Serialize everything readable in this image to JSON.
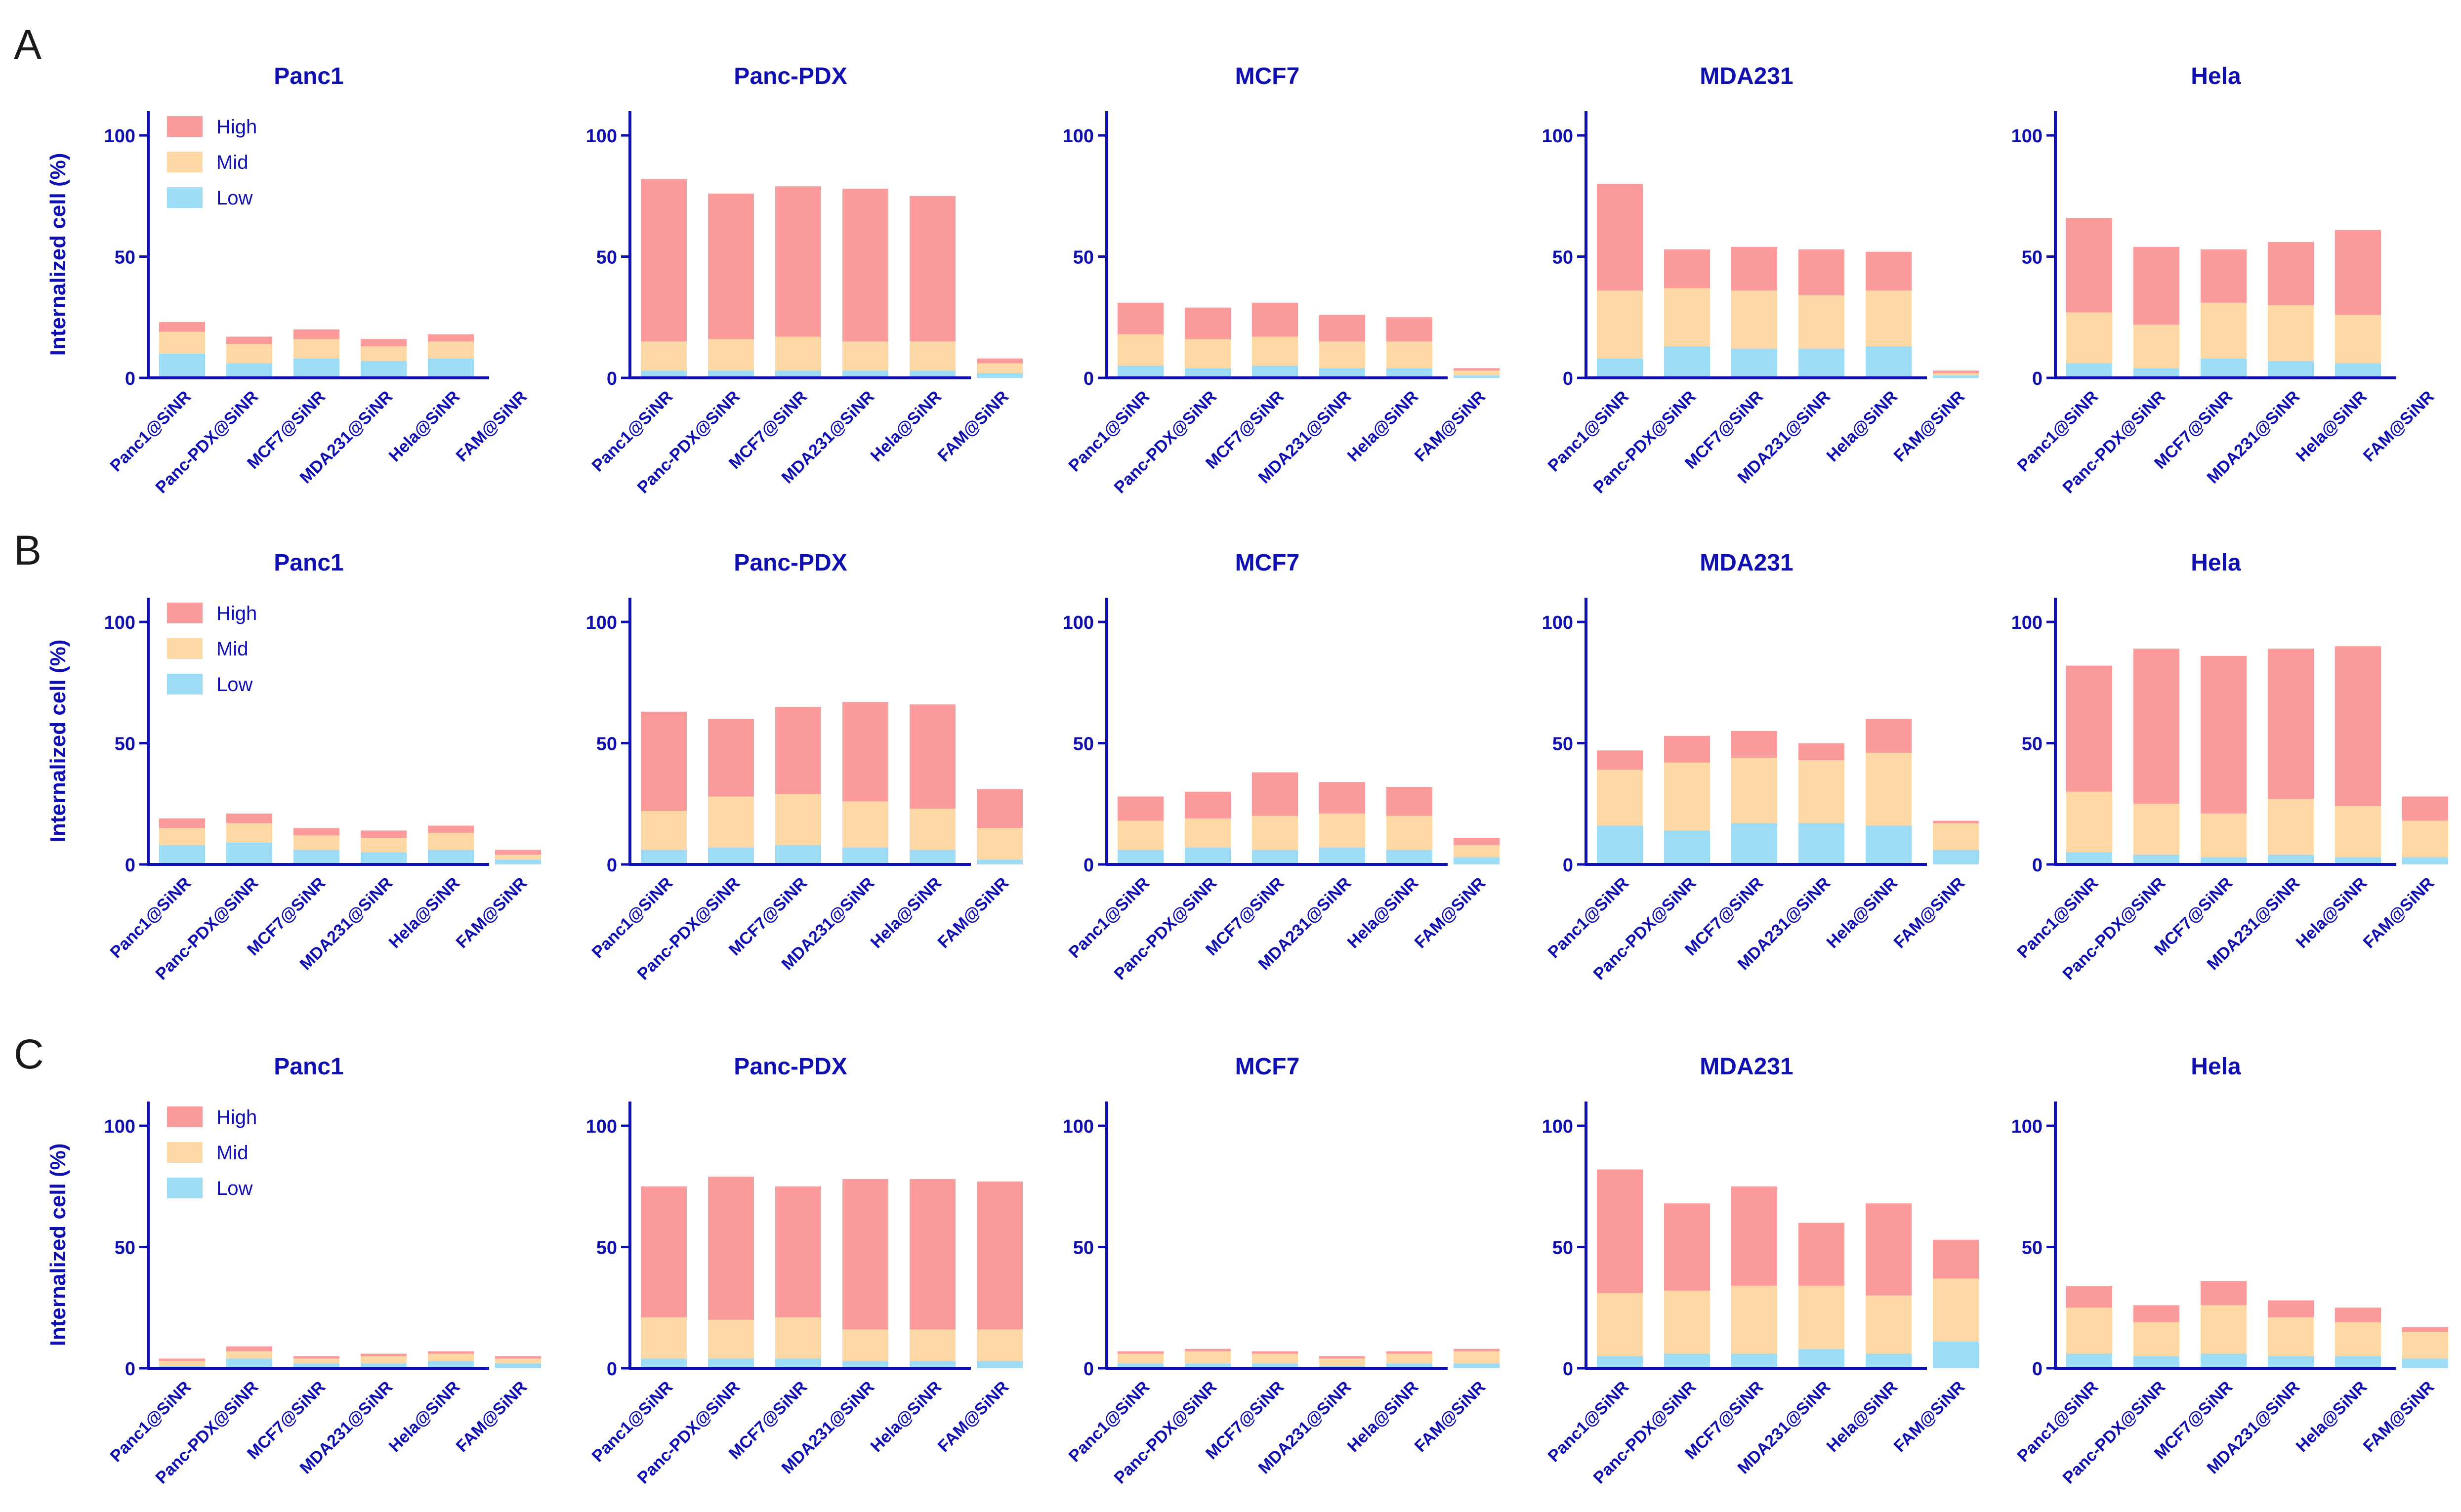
{
  "figure": {
    "row_labels": [
      "A",
      "B",
      "C"
    ],
    "ylabel": "Internalized cell (%)",
    "legend": {
      "high": "High",
      "mid": "Mid",
      "low": "Low"
    },
    "colors": {
      "high": "#fc9b9b",
      "mid": "#fdd7a4",
      "low": "#9edcf5",
      "axis": "#1010b0",
      "text": "#1010b0"
    }
  },
  "chart_data": [
    {
      "row": "A",
      "type": "bar",
      "stacked": true,
      "title": "Panc1",
      "ylabel": "Internalized cell (%)",
      "ylim": [
        0,
        110
      ],
      "yticks": [
        0,
        50,
        100
      ],
      "categories": [
        "Panc1@SiNR",
        "Panc-PDX@SiNR",
        "MCF7@SiNR",
        "MDA231@SiNR",
        "Hela@SiNR",
        "FAM@SiNR"
      ],
      "series": [
        {
          "name": "Low",
          "values": [
            10,
            6,
            8,
            7,
            8,
            0
          ]
        },
        {
          "name": "Mid",
          "values": [
            9,
            8,
            8,
            6,
            7,
            0
          ]
        },
        {
          "name": "High",
          "values": [
            4,
            3,
            4,
            3,
            3,
            0
          ]
        }
      ]
    },
    {
      "row": "A",
      "type": "bar",
      "stacked": true,
      "title": "Panc-PDX",
      "ylim": [
        0,
        110
      ],
      "yticks": [
        0,
        50,
        100
      ],
      "categories": [
        "Panc1@SiNR",
        "Panc-PDX@SiNR",
        "MCF7@SiNR",
        "MDA231@SiNR",
        "Hela@SiNR",
        "FAM@SiNR"
      ],
      "series": [
        {
          "name": "Low",
          "values": [
            3,
            3,
            3,
            3,
            3,
            2
          ]
        },
        {
          "name": "Mid",
          "values": [
            12,
            13,
            14,
            12,
            12,
            4
          ]
        },
        {
          "name": "High",
          "values": [
            67,
            60,
            62,
            63,
            60,
            2
          ]
        }
      ]
    },
    {
      "row": "A",
      "type": "bar",
      "stacked": true,
      "title": "MCF7",
      "ylim": [
        0,
        110
      ],
      "yticks": [
        0,
        50,
        100
      ],
      "categories": [
        "Panc1@SiNR",
        "Panc-PDX@SiNR",
        "MCF7@SiNR",
        "MDA231@SiNR",
        "Hela@SiNR",
        "FAM@SiNR"
      ],
      "series": [
        {
          "name": "Low",
          "values": [
            5,
            4,
            5,
            4,
            4,
            1
          ]
        },
        {
          "name": "Mid",
          "values": [
            13,
            12,
            12,
            11,
            11,
            2
          ]
        },
        {
          "name": "High",
          "values": [
            13,
            13,
            14,
            11,
            10,
            1
          ]
        }
      ]
    },
    {
      "row": "A",
      "type": "bar",
      "stacked": true,
      "title": "MDA231",
      "ylim": [
        0,
        110
      ],
      "yticks": [
        0,
        50,
        100
      ],
      "categories": [
        "Panc1@SiNR",
        "Panc-PDX@SiNR",
        "MCF7@SiNR",
        "MDA231@SiNR",
        "Hela@SiNR",
        "FAM@SiNR"
      ],
      "series": [
        {
          "name": "Low",
          "values": [
            8,
            13,
            12,
            12,
            13,
            1
          ]
        },
        {
          "name": "Mid",
          "values": [
            28,
            24,
            24,
            22,
            23,
            1
          ]
        },
        {
          "name": "High",
          "values": [
            44,
            16,
            18,
            19,
            16,
            1
          ]
        }
      ]
    },
    {
      "row": "A",
      "type": "bar",
      "stacked": true,
      "title": "Hela",
      "ylim": [
        0,
        110
      ],
      "yticks": [
        0,
        50,
        100
      ],
      "categories": [
        "Panc1@SiNR",
        "Panc-PDX@SiNR",
        "MCF7@SiNR",
        "MDA231@SiNR",
        "Hela@SiNR",
        "FAM@SiNR"
      ],
      "series": [
        {
          "name": "Low",
          "values": [
            6,
            4,
            8,
            7,
            6,
            0
          ]
        },
        {
          "name": "Mid",
          "values": [
            21,
            18,
            23,
            23,
            20,
            0
          ]
        },
        {
          "name": "High",
          "values": [
            39,
            32,
            22,
            26,
            35,
            0
          ]
        }
      ]
    },
    {
      "row": "B",
      "type": "bar",
      "stacked": true,
      "title": "Panc1",
      "ylabel": "Internalized cell (%)",
      "ylim": [
        0,
        110
      ],
      "yticks": [
        0,
        50,
        100
      ],
      "categories": [
        "Panc1@SiNR",
        "Panc-PDX@SiNR",
        "MCF7@SiNR",
        "MDA231@SiNR",
        "Hela@SiNR",
        "FAM@SiNR"
      ],
      "series": [
        {
          "name": "Low",
          "values": [
            8,
            9,
            6,
            5,
            6,
            2
          ]
        },
        {
          "name": "Mid",
          "values": [
            7,
            8,
            6,
            6,
            7,
            2
          ]
        },
        {
          "name": "High",
          "values": [
            4,
            4,
            3,
            3,
            3,
            2
          ]
        }
      ]
    },
    {
      "row": "B",
      "type": "bar",
      "stacked": true,
      "title": "Panc-PDX",
      "ylim": [
        0,
        110
      ],
      "yticks": [
        0,
        50,
        100
      ],
      "categories": [
        "Panc1@SiNR",
        "Panc-PDX@SiNR",
        "MCF7@SiNR",
        "MDA231@SiNR",
        "Hela@SiNR",
        "FAM@SiNR"
      ],
      "series": [
        {
          "name": "Low",
          "values": [
            6,
            7,
            8,
            7,
            6,
            2
          ]
        },
        {
          "name": "Mid",
          "values": [
            16,
            21,
            21,
            19,
            17,
            13
          ]
        },
        {
          "name": "High",
          "values": [
            41,
            32,
            36,
            41,
            43,
            16
          ]
        }
      ]
    },
    {
      "row": "B",
      "type": "bar",
      "stacked": true,
      "title": "MCF7",
      "ylim": [
        0,
        110
      ],
      "yticks": [
        0,
        50,
        100
      ],
      "categories": [
        "Panc1@SiNR",
        "Panc-PDX@SiNR",
        "MCF7@SiNR",
        "MDA231@SiNR",
        "Hela@SiNR",
        "FAM@SiNR"
      ],
      "series": [
        {
          "name": "Low",
          "values": [
            6,
            7,
            6,
            7,
            6,
            3
          ]
        },
        {
          "name": "Mid",
          "values": [
            12,
            12,
            14,
            14,
            14,
            5
          ]
        },
        {
          "name": "High",
          "values": [
            10,
            11,
            18,
            13,
            12,
            3
          ]
        }
      ]
    },
    {
      "row": "B",
      "type": "bar",
      "stacked": true,
      "title": "MDA231",
      "ylim": [
        0,
        110
      ],
      "yticks": [
        0,
        50,
        100
      ],
      "categories": [
        "Panc1@SiNR",
        "Panc-PDX@SiNR",
        "MCF7@SiNR",
        "MDA231@SiNR",
        "Hela@SiNR",
        "FAM@SiNR"
      ],
      "series": [
        {
          "name": "Low",
          "values": [
            16,
            14,
            17,
            17,
            16,
            6
          ]
        },
        {
          "name": "Mid",
          "values": [
            23,
            28,
            27,
            26,
            30,
            11
          ]
        },
        {
          "name": "High",
          "values": [
            8,
            11,
            11,
            7,
            14,
            1
          ]
        }
      ]
    },
    {
      "row": "B",
      "type": "bar",
      "stacked": true,
      "title": "Hela",
      "ylim": [
        0,
        110
      ],
      "yticks": [
        0,
        50,
        100
      ],
      "categories": [
        "Panc1@SiNR",
        "Panc-PDX@SiNR",
        "MCF7@SiNR",
        "MDA231@SiNR",
        "Hela@SiNR",
        "FAM@SiNR"
      ],
      "series": [
        {
          "name": "Low",
          "values": [
            5,
            4,
            3,
            4,
            3,
            3
          ]
        },
        {
          "name": "Mid",
          "values": [
            25,
            21,
            18,
            23,
            21,
            15
          ]
        },
        {
          "name": "High",
          "values": [
            52,
            64,
            65,
            62,
            66,
            10
          ]
        }
      ]
    },
    {
      "row": "C",
      "type": "bar",
      "stacked": true,
      "title": "Panc1",
      "ylabel": "Internalized cell (%)",
      "ylim": [
        0,
        110
      ],
      "yticks": [
        0,
        50,
        100
      ],
      "categories": [
        "Panc1@SiNR",
        "Panc-PDX@SiNR",
        "MCF7@SiNR",
        "MDA231@SiNR",
        "Hela@SiNR",
        "FAM@SiNR"
      ],
      "series": [
        {
          "name": "Low",
          "values": [
            1,
            4,
            2,
            2,
            3,
            2
          ]
        },
        {
          "name": "Mid",
          "values": [
            2,
            3,
            2,
            3,
            3,
            2
          ]
        },
        {
          "name": "High",
          "values": [
            1,
            2,
            1,
            1,
            1,
            1
          ]
        }
      ]
    },
    {
      "row": "C",
      "type": "bar",
      "stacked": true,
      "title": "Panc-PDX",
      "ylim": [
        0,
        110
      ],
      "yticks": [
        0,
        50,
        100
      ],
      "categories": [
        "Panc1@SiNR",
        "Panc-PDX@SiNR",
        "MCF7@SiNR",
        "MDA231@SiNR",
        "Hela@SiNR",
        "FAM@SiNR"
      ],
      "series": [
        {
          "name": "Low",
          "values": [
            4,
            4,
            4,
            3,
            3,
            3
          ]
        },
        {
          "name": "Mid",
          "values": [
            17,
            16,
            17,
            13,
            13,
            13
          ]
        },
        {
          "name": "High",
          "values": [
            54,
            59,
            54,
            62,
            62,
            61
          ]
        }
      ]
    },
    {
      "row": "C",
      "type": "bar",
      "stacked": true,
      "title": "MCF7",
      "ylim": [
        0,
        110
      ],
      "yticks": [
        0,
        50,
        100
      ],
      "categories": [
        "Panc1@SiNR",
        "Panc-PDX@SiNR",
        "MCF7@SiNR",
        "MDA231@SiNR",
        "Hela@SiNR",
        "FAM@SiNR"
      ],
      "series": [
        {
          "name": "Low",
          "values": [
            2,
            2,
            2,
            1,
            2,
            2
          ]
        },
        {
          "name": "Mid",
          "values": [
            4,
            5,
            4,
            3,
            4,
            5
          ]
        },
        {
          "name": "High",
          "values": [
            1,
            1,
            1,
            1,
            1,
            1
          ]
        }
      ]
    },
    {
      "row": "C",
      "type": "bar",
      "stacked": true,
      "title": "MDA231",
      "ylim": [
        0,
        110
      ],
      "yticks": [
        0,
        50,
        100
      ],
      "categories": [
        "Panc1@SiNR",
        "Panc-PDX@SiNR",
        "MCF7@SiNR",
        "MDA231@SiNR",
        "Hela@SiNR",
        "FAM@SiNR"
      ],
      "series": [
        {
          "name": "Low",
          "values": [
            5,
            6,
            6,
            8,
            6,
            11
          ]
        },
        {
          "name": "Mid",
          "values": [
            26,
            26,
            28,
            26,
            24,
            26
          ]
        },
        {
          "name": "High",
          "values": [
            51,
            36,
            41,
            26,
            38,
            16
          ]
        }
      ]
    },
    {
      "row": "C",
      "type": "bar",
      "stacked": true,
      "title": "Hela",
      "ylim": [
        0,
        110
      ],
      "yticks": [
        0,
        50,
        100
      ],
      "categories": [
        "Panc1@SiNR",
        "Panc-PDX@SiNR",
        "MCF7@SiNR",
        "MDA231@SiNR",
        "Hela@SiNR",
        "FAM@SiNR"
      ],
      "series": [
        {
          "name": "Low",
          "values": [
            6,
            5,
            6,
            5,
            5,
            4
          ]
        },
        {
          "name": "Mid",
          "values": [
            19,
            14,
            20,
            16,
            14,
            11
          ]
        },
        {
          "name": "High",
          "values": [
            9,
            7,
            10,
            7,
            6,
            2
          ]
        }
      ]
    }
  ]
}
